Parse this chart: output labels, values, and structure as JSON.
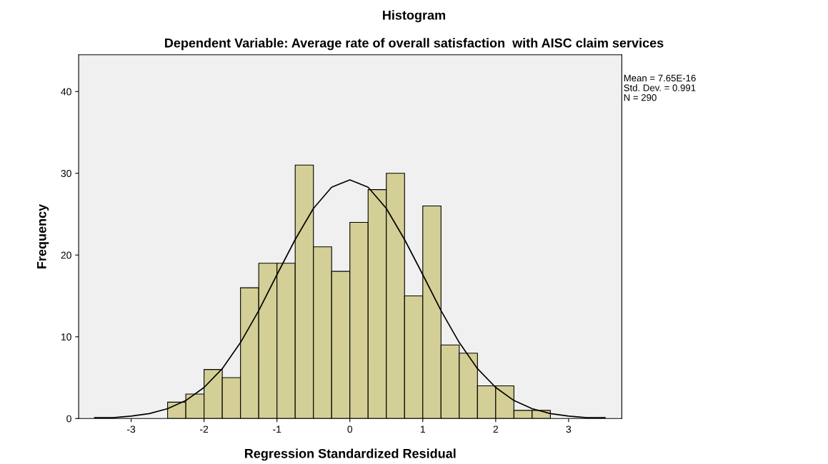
{
  "chart_data": {
    "type": "histogram",
    "title": "Histogram",
    "subtitle": "Dependent Variable: Average rate of overall satisfaction  with AISC claim services",
    "xlabel": "Regression Standardized Residual",
    "ylabel": "Frequency",
    "bins": [
      -2.5,
      -2.25,
      -2.0,
      -1.75,
      -1.5,
      -1.25,
      -1.0,
      -0.75,
      -0.5,
      -0.25,
      0.0,
      0.25,
      0.5,
      0.75,
      1.0,
      1.25,
      1.5,
      1.75,
      2.0,
      2.25,
      2.5,
      2.75
    ],
    "values": [
      2,
      3,
      6,
      5,
      16,
      19,
      19,
      31,
      21,
      18,
      24,
      28,
      30,
      15,
      26,
      9,
      8,
      4,
      4,
      1,
      1
    ],
    "color": "#d4cf96",
    "series": [
      {
        "type": "line",
        "color": "#000000",
        "x": [
          -3.5,
          -3.25,
          -3.0,
          -2.75,
          -2.5,
          -2.25,
          -2.0,
          -1.75,
          -1.5,
          -1.25,
          -1.0,
          -0.75,
          -0.5,
          -0.25,
          0.0,
          0.25,
          0.5,
          0.75,
          1.0,
          1.25,
          1.5,
          1.75,
          2.0,
          2.25,
          2.5,
          2.75,
          3.0,
          3.25,
          3.5
        ],
        "values": [
          0.1,
          0.1,
          0.3,
          0.6,
          1.2,
          2.2,
          3.8,
          6.1,
          9.3,
          13.2,
          17.6,
          21.9,
          25.7,
          28.3,
          29.2,
          28.3,
          25.7,
          21.9,
          17.6,
          13.2,
          9.3,
          6.1,
          3.8,
          2.2,
          1.2,
          0.6,
          0.3,
          0.1,
          0.1
        ]
      }
    ],
    "xlim": [
      -3.72,
      3.73
    ],
    "ylim": [
      0,
      44.5
    ],
    "xticks": [
      -3,
      -2,
      -1,
      0,
      1,
      2,
      3
    ],
    "yticks": [
      0,
      10,
      20,
      30,
      40
    ],
    "grid": false,
    "annotations": [
      "Mean = 7.65E-16",
      "Std. Dev. = 0.991",
      "N = 290"
    ]
  }
}
